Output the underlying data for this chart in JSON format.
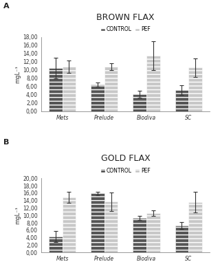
{
  "panel_a": {
    "title": "BROWN FLAX",
    "label": "A",
    "categories": [
      "Mets",
      "Prelude",
      "Biodiva",
      "SC"
    ],
    "control_values": [
      10.5,
      6.5,
      4.1,
      5.1
    ],
    "pef_values": [
      10.8,
      10.8,
      13.5,
      10.6
    ],
    "control_errors": [
      2.5,
      0.5,
      0.8,
      1.2
    ],
    "pef_errors": [
      1.5,
      0.8,
      3.5,
      2.2
    ],
    "ylim": [
      0,
      18
    ],
    "yticks": [
      0,
      2,
      4,
      6,
      8,
      10,
      12,
      14,
      16,
      18
    ],
    "yticklabels": [
      "0,00",
      "2,00",
      "4,00",
      "6,00",
      "8,00",
      "10,00",
      "12,00",
      "14,00",
      "16,00",
      "18,00"
    ]
  },
  "panel_b": {
    "title": "GOLD FLAX",
    "label": "B",
    "categories": [
      "Mets",
      "Prelude",
      "Biodiva",
      "SC"
    ],
    "control_values": [
      4.3,
      15.9,
      9.3,
      7.3
    ],
    "pef_values": [
      14.8,
      13.7,
      10.6,
      13.5
    ],
    "control_errors": [
      1.5,
      0.4,
      0.5,
      0.9
    ],
    "pef_errors": [
      1.5,
      2.5,
      0.8,
      2.8
    ],
    "ylim": [
      0,
      20
    ],
    "yticks": [
      0,
      2,
      4,
      6,
      8,
      10,
      12,
      14,
      16,
      18,
      20
    ],
    "yticklabels": [
      "0,00",
      "2,00",
      "4,00",
      "6,00",
      "8,00",
      "10,00",
      "12,00",
      "14,00",
      "16,00",
      "18,00",
      "20,00"
    ]
  },
  "control_color": "#555555",
  "pef_color": "#c8c8c8",
  "control_hatch": "---",
  "pef_hatch": "---",
  "bar_width": 0.32,
  "ylabel": "mgL⁻¹",
  "legend_control": "CONTROL",
  "legend_pef": "PEF",
  "background_color": "#ffffff",
  "title_fontsize": 9,
  "tick_fontsize": 5.5,
  "label_fontsize": 6,
  "legend_fontsize": 5.5,
  "axis_color": "#888888"
}
